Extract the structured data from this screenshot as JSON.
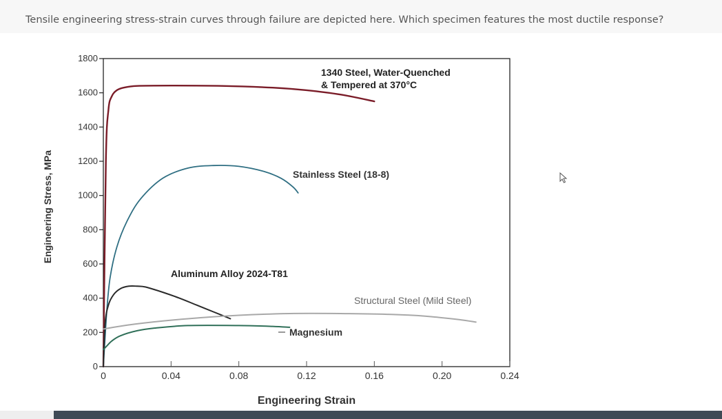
{
  "question": "Tensile engineering stress-strain curves through failure are depicted here. Which specimen features the most ductile response?",
  "colors": {
    "steel_1340": "#7a1c28",
    "stainless": "#2e6e82",
    "aluminum": "#2a2a2a",
    "mild_steel": "#a8a8a8",
    "magnesium": "#2f6f58",
    "axis": "#222222"
  },
  "chart_data": {
    "type": "line",
    "title": "",
    "xlabel": "Engineering Strain",
    "ylabel": "Engineering Stress, MPa",
    "xlim": [
      0,
      0.24
    ],
    "ylim": [
      0,
      1800
    ],
    "x_ticks": [
      "0",
      "0.04",
      "0.08",
      "0.12",
      "0.16",
      "0.20",
      "0.24"
    ],
    "y_ticks": [
      "0",
      "200",
      "400",
      "600",
      "800",
      "1000",
      "1200",
      "1400",
      "1600",
      "1800"
    ],
    "grid": false,
    "series": [
      {
        "name": "1340 Steel, Water-Quenched & Tempered at 370°C",
        "label_lines": [
          "1340 Steel, Water-Quenched",
          "& Tempered at 370°C"
        ],
        "color_key": "steel_1340",
        "x": [
          0,
          0.0015,
          0.003,
          0.005,
          0.008,
          0.012,
          0.02,
          0.04,
          0.07,
          0.1,
          0.12,
          0.14,
          0.16
        ],
        "y": [
          0,
          1200,
          1500,
          1580,
          1615,
          1630,
          1640,
          1642,
          1640,
          1630,
          1615,
          1590,
          1550
        ]
      },
      {
        "name": "Stainless Steel (18-8)",
        "color_key": "stainless",
        "x": [
          0,
          0.002,
          0.004,
          0.008,
          0.014,
          0.022,
          0.035,
          0.05,
          0.065,
          0.08,
          0.095,
          0.105,
          0.112,
          0.115
        ],
        "y": [
          0,
          320,
          520,
          700,
          850,
          980,
          1100,
          1160,
          1175,
          1170,
          1140,
          1100,
          1050,
          1015
        ]
      },
      {
        "name": "Aluminum Alloy 2024-T81",
        "color_key": "aluminum",
        "x": [
          0,
          0.001,
          0.003,
          0.006,
          0.01,
          0.015,
          0.02,
          0.025,
          0.035,
          0.045,
          0.055,
          0.065,
          0.075
        ],
        "y": [
          0,
          250,
          360,
          420,
          455,
          470,
          470,
          465,
          435,
          400,
          360,
          320,
          280
        ]
      },
      {
        "name": "Structural Steel (Mild Steel)",
        "color_key": "mild_steel",
        "x": [
          0,
          0.02,
          0.05,
          0.08,
          0.11,
          0.14,
          0.17,
          0.19,
          0.21,
          0.22
        ],
        "y": [
          220,
          250,
          280,
          300,
          310,
          310,
          305,
          295,
          275,
          260
        ]
      },
      {
        "name": "Magnesium",
        "color_key": "magnesium",
        "x": [
          0,
          0.002,
          0.005,
          0.01,
          0.02,
          0.03,
          0.05,
          0.08,
          0.1,
          0.11
        ],
        "y": [
          100,
          120,
          150,
          180,
          210,
          225,
          240,
          240,
          235,
          230
        ]
      }
    ]
  }
}
